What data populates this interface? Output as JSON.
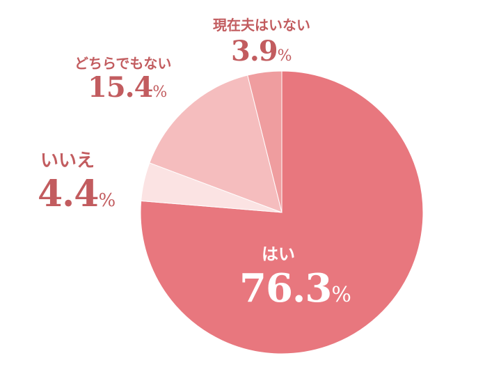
{
  "chart_data": {
    "type": "pie",
    "start_angle_deg": 0,
    "direction": "clockwise",
    "slices": [
      {
        "label": "はい",
        "value": 76.3,
        "display": "76.3",
        "unit": "%",
        "color": "#e8777e"
      },
      {
        "label": "いいえ",
        "value": 4.4,
        "display": "4.4",
        "unit": "%",
        "color": "#fbe3e3"
      },
      {
        "label": "どちらでもない",
        "value": 15.4,
        "display": "15.4",
        "unit": "%",
        "color": "#f5bdbe"
      },
      {
        "label": "現在夫はいない",
        "value": 3.9,
        "display": "3.9",
        "unit": "%",
        "color": "#ef9d9f"
      }
    ]
  }
}
